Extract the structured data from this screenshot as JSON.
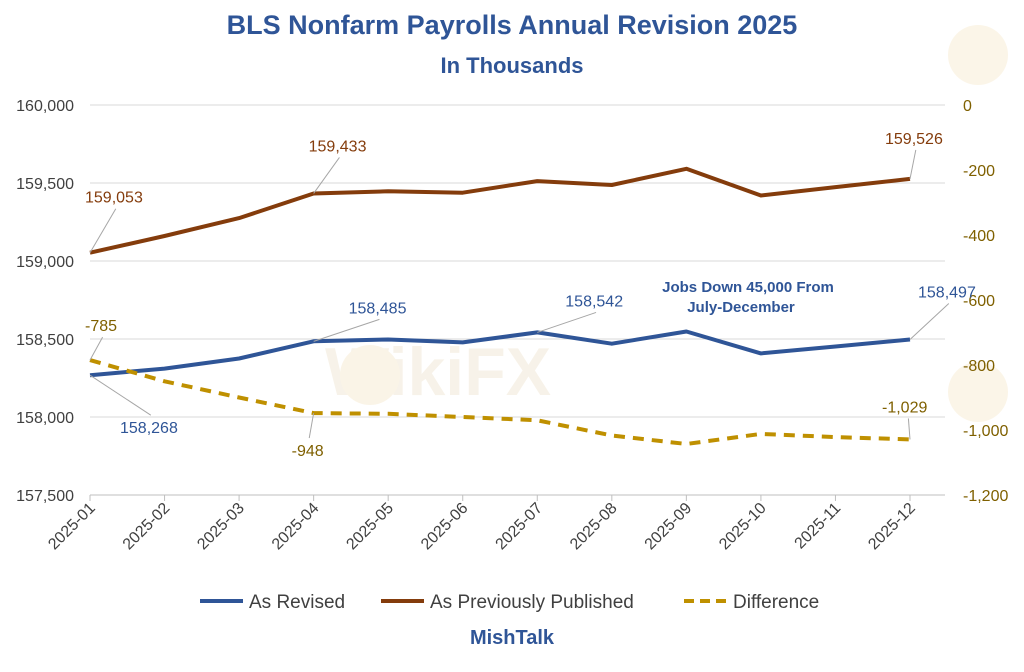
{
  "chart_data": {
    "type": "line",
    "title": "BLS Nonfarm Payrolls Annual Revision 2025",
    "subtitle": "In Thousands",
    "categories": [
      "2025-01",
      "2025-02",
      "2025-03",
      "2025-04",
      "2025-05",
      "2025-06",
      "2025-07",
      "2025-08",
      "2025-09",
      "2025-10",
      "2025-11",
      "2025-12"
    ],
    "series": [
      {
        "name": "As Revised",
        "axis": "left",
        "color": "#2f5597",
        "dash": false,
        "values": [
          158268,
          158310,
          158375,
          158485,
          158497,
          158478,
          158542,
          158470,
          158548,
          158408,
          158452,
          158497
        ]
      },
      {
        "name": "As Previously Published",
        "axis": "left",
        "color": "#843c0c",
        "dash": false,
        "values": [
          159053,
          159160,
          159275,
          159433,
          159447,
          159438,
          159512,
          159487,
          159591,
          159420,
          159474,
          159526
        ]
      },
      {
        "name": "Difference",
        "axis": "right",
        "color": "#bf9000",
        "dash": true,
        "values": [
          -785,
          -850,
          -900,
          -948,
          -950,
          -960,
          -970,
          -1017,
          -1043,
          -1012,
          -1022,
          -1029
        ]
      }
    ],
    "left_axis": {
      "min": 157500,
      "max": 160000,
      "ticks": [
        157500,
        158000,
        158500,
        159000,
        159500,
        160000
      ],
      "tick_labels": [
        "157,500",
        "158,000",
        "158,500",
        "159,000",
        "159,500",
        "160,000"
      ]
    },
    "right_axis": {
      "min": -1200,
      "max": 0,
      "ticks": [
        -1200,
        -1000,
        -800,
        -600,
        -400,
        -200,
        0
      ],
      "tick_labels": [
        "-1,200",
        "-1,000",
        "-800",
        "-600",
        "-400",
        "-200",
        "0"
      ]
    },
    "data_labels": [
      {
        "series": 0,
        "index": 0,
        "text": "158,268"
      },
      {
        "series": 0,
        "index": 3,
        "text": "158,485"
      },
      {
        "series": 0,
        "index": 6,
        "text": "158,542"
      },
      {
        "series": 0,
        "index": 11,
        "text": "158,497"
      },
      {
        "series": 1,
        "index": 0,
        "text": "159,053"
      },
      {
        "series": 1,
        "index": 3,
        "text": "159,433"
      },
      {
        "series": 1,
        "index": 11,
        "text": "159,526"
      },
      {
        "series": 2,
        "index": 0,
        "text": "-785"
      },
      {
        "series": 2,
        "index": 3,
        "text": "-948"
      },
      {
        "series": 2,
        "index": 11,
        "text": "-1,029"
      }
    ],
    "annotation": [
      "Jobs Down 45,000 From",
      "July-December"
    ],
    "legend": [
      "As Revised",
      "As Previously Published",
      "Difference"
    ],
    "legend_position": "bottom",
    "source": "MishTalk",
    "grid": true
  },
  "watermark": {
    "text": "WikiFX"
  }
}
